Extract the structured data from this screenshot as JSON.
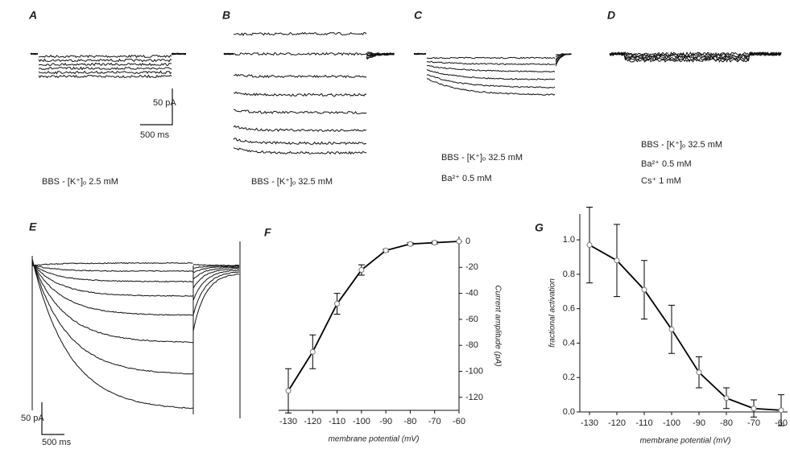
{
  "panels": {
    "A": {
      "label": "A",
      "caption": "BBS - [K⁺]ₒ 2.5 mM",
      "scale_y": "50 pA",
      "scale_x": "500 ms"
    },
    "B": {
      "label": "B",
      "caption": "BBS - [K⁺]ₒ 32.5 mM"
    },
    "C": {
      "label": "C",
      "caption": "BBS - [K⁺]ₒ 32.5 mM",
      "caption2": "Ba²⁺ 0.5 mM"
    },
    "D": {
      "label": "D",
      "caption": "BBS - [K⁺]ₒ 32.5 mM",
      "caption2": "Ba²⁺ 0.5 mM",
      "caption3": "Cs⁺ 1 mM"
    },
    "E": {
      "label": "E",
      "scale_y": "50 pA",
      "scale_x": "500 ms"
    }
  },
  "chart_data": [
    {
      "type": "line",
      "label": "F",
      "x_label": "membrane potential (mV)",
      "y_label": "Current amplitude (pA)",
      "x": [
        -130,
        -120,
        -110,
        -100,
        -90,
        -80,
        -70,
        -60
      ],
      "series": [
        {
          "color": "#000000",
          "values": [
            -115,
            -85,
            -48,
            -22,
            -7,
            -2,
            -1,
            0
          ],
          "errors": [
            17,
            13,
            8,
            4,
            1,
            1,
            1,
            0
          ]
        }
      ],
      "xlim": [
        -130,
        -60
      ],
      "xticks": [
        -130,
        -120,
        -110,
        -100,
        -90,
        -80,
        -70,
        -60
      ],
      "ylim": [
        -130,
        0
      ],
      "yticks": [
        0,
        -20,
        -40,
        -60,
        -80,
        -100,
        -120
      ],
      "y_axis_side": "right"
    },
    {
      "type": "line",
      "label": "G",
      "x_label": "membrane potential (mV)",
      "y_label": "fractional activation",
      "x": [
        -130,
        -120,
        -110,
        -100,
        -90,
        -80,
        -70,
        -60
      ],
      "series": [
        {
          "color": "#000000",
          "values": [
            0.97,
            0.88,
            0.71,
            0.48,
            0.23,
            0.08,
            0.02,
            0.01
          ],
          "errors": [
            0.22,
            0.21,
            0.17,
            0.14,
            0.09,
            0.06,
            0.05,
            0.09
          ]
        }
      ],
      "xlim": [
        -130,
        -60
      ],
      "xticks": [
        -130,
        -120,
        -110,
        -100,
        -90,
        -80,
        -70,
        -60
      ],
      "ylim": [
        0,
        1.15
      ],
      "yticks": [
        {
          "value": 0,
          "label": "0.0"
        },
        {
          "value": 0.2,
          "label": "0.2"
        },
        {
          "value": 0.4,
          "label": "0.4"
        },
        {
          "value": 0.6,
          "label": "0.6"
        },
        {
          "value": 0.8,
          "label": "0.8"
        },
        {
          "value": 1.0,
          "label": "1.0"
        }
      ],
      "y_axis_side": "left"
    }
  ]
}
